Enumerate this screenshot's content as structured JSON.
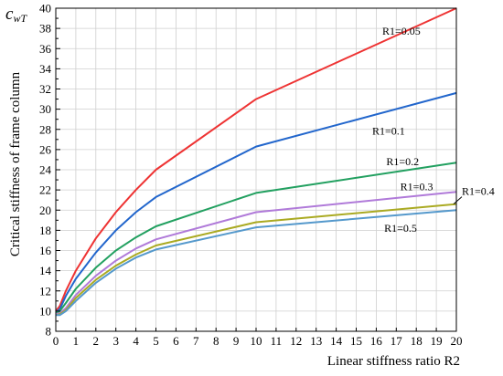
{
  "chart_data": {
    "type": "line",
    "xlabel": "Linear stiffness ratio  R2",
    "ylabel": "Critical stiffness of frame column",
    "ylabel_symbol": "c",
    "ylabel_symbol_sub": "wT",
    "x_tick_labels": [
      "0",
      "1",
      "2",
      "3",
      "4",
      "5",
      "6",
      "7",
      "8",
      "9",
      "10",
      "11",
      "12",
      "13",
      "14",
      "15",
      "16",
      "17",
      "18",
      "19",
      "20"
    ],
    "y_tick_labels": [
      "8",
      "10",
      "12",
      "14",
      "16",
      "18",
      "20",
      "22",
      "24",
      "26",
      "28",
      "30",
      "32",
      "34",
      "36",
      "38",
      "40"
    ],
    "xlim": [
      0,
      20
    ],
    "ylim": [
      8,
      40
    ],
    "grid": true,
    "x_breaks": [
      0,
      5,
      10,
      20
    ],
    "series": [
      {
        "name": "R1=0.05",
        "color": "#ee3333",
        "x": [
          0,
          0.2,
          0.5,
          1,
          2,
          3,
          4,
          5,
          10,
          20
        ],
        "y": [
          10.0,
          10.5,
          12.0,
          14.0,
          17.2,
          19.8,
          22.0,
          24.0,
          31.0,
          40.0
        ]
      },
      {
        "name": "R1=0.1",
        "color": "#2266cc",
        "x": [
          0,
          0.2,
          0.5,
          1,
          2,
          3,
          4,
          5,
          10,
          20
        ],
        "y": [
          9.9,
          10.2,
          11.5,
          13.2,
          15.8,
          18.0,
          19.8,
          21.3,
          26.3,
          31.6
        ]
      },
      {
        "name": "R1=0.2",
        "color": "#22a060",
        "x": [
          0,
          0.2,
          0.5,
          1,
          2,
          3,
          4,
          5,
          10,
          20
        ],
        "y": [
          9.8,
          10.0,
          10.8,
          12.2,
          14.3,
          16.0,
          17.3,
          18.4,
          21.7,
          24.7
        ]
      },
      {
        "name": "R1=0.3",
        "color": "#b07ad9",
        "x": [
          0,
          0.2,
          0.5,
          1,
          2,
          3,
          4,
          5,
          10,
          20
        ],
        "y": [
          9.7,
          9.8,
          10.3,
          11.6,
          13.5,
          15.0,
          16.2,
          17.1,
          19.8,
          21.8
        ]
      },
      {
        "name": "R1=0.4",
        "color": "#aaaa22",
        "x": [
          0,
          0.2,
          0.5,
          1,
          2,
          3,
          4,
          5,
          10,
          20
        ],
        "y": [
          9.6,
          9.7,
          10.1,
          11.3,
          13.1,
          14.5,
          15.6,
          16.5,
          18.8,
          20.6
        ]
      },
      {
        "name": "R1=0.5",
        "color": "#5599cc",
        "x": [
          0,
          0.2,
          0.5,
          1,
          2,
          3,
          4,
          5,
          10,
          20
        ],
        "y": [
          9.6,
          9.6,
          10.0,
          11.0,
          12.8,
          14.2,
          15.3,
          16.1,
          18.3,
          20.0
        ]
      }
    ]
  }
}
